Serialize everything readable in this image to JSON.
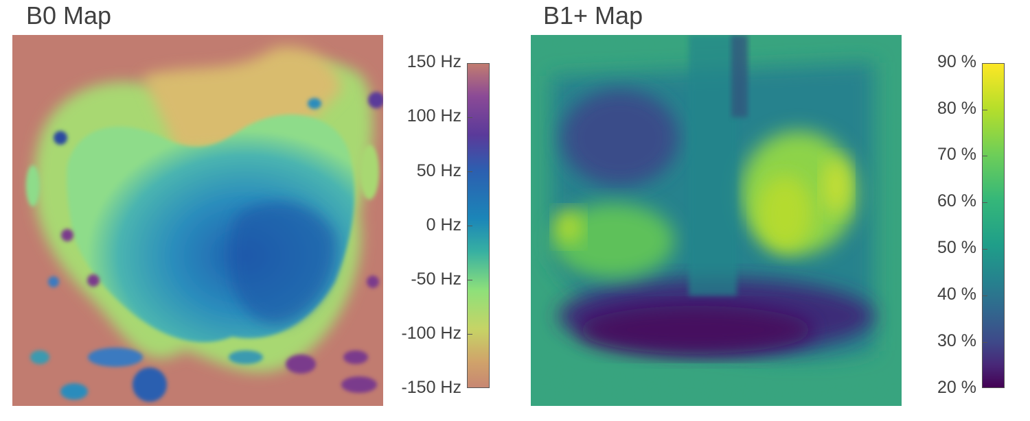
{
  "b0": {
    "title": "B0 Map",
    "ticks": [
      "150 Hz",
      "100 Hz",
      "50 Hz",
      "0 Hz",
      "-50 Hz",
      "-100 Hz",
      "-150 Hz"
    ]
  },
  "b1": {
    "title": "B1+ Map",
    "ticks": [
      "90 %",
      "80 %",
      "70 %",
      "60 %",
      "50 %",
      "40 %",
      "30 %",
      "20 %"
    ]
  },
  "colors": {
    "b0_background": "#c17c70",
    "b1_noise": "#2e9a88"
  }
}
